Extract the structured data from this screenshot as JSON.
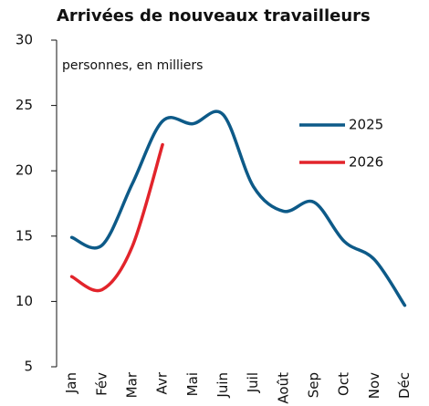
{
  "chart_data": {
    "type": "line",
    "title": "Arrivées de nouveaux travailleurs",
    "subtitle": "personnes, en milliers",
    "categories": [
      "Jan",
      "Fév",
      "Mar",
      "Avr",
      "Mai",
      "Juin",
      "Juil",
      "Août",
      "Sep",
      "Oct",
      "Nov",
      "Déc"
    ],
    "series": [
      {
        "name": "2025",
        "color": "#0d5a88",
        "values": [
          14.9,
          14.3,
          19.0,
          23.8,
          23.6,
          24.3,
          18.8,
          16.9,
          17.6,
          14.6,
          13.2,
          9.7
        ]
      },
      {
        "name": "2026",
        "color": "#e2242b",
        "values": [
          11.9,
          10.9,
          14.2,
          22.0,
          null,
          null,
          null,
          null,
          null,
          null,
          null,
          null
        ]
      }
    ],
    "ylim": [
      5,
      30
    ],
    "yticks": [
      5,
      10,
      15,
      20,
      25,
      30
    ],
    "grid": false
  }
}
